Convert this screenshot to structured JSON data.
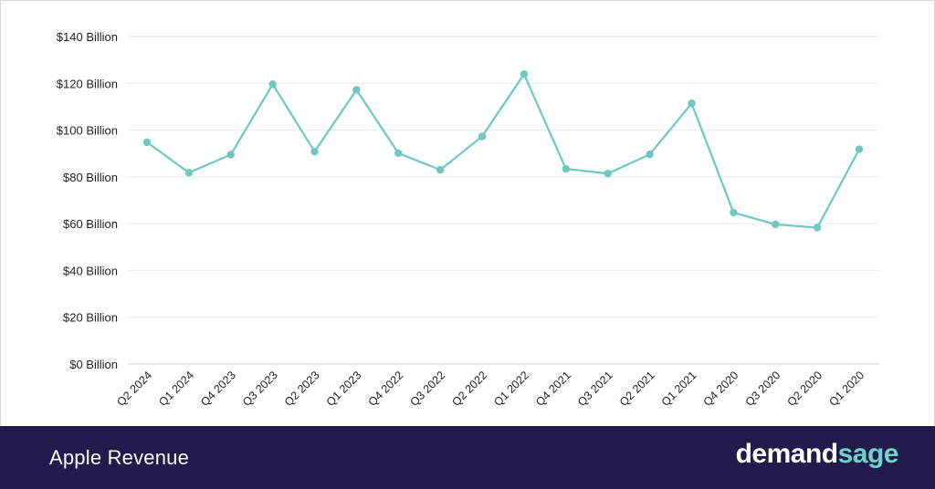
{
  "chart_data": {
    "type": "line",
    "categories": [
      "Q2 2024",
      "Q1 2024",
      "Q4 2023",
      "Q3 2023",
      "Q2 2023",
      "Q1 2023",
      "Q4 2022",
      "Q3 2022",
      "Q2 2022",
      "Q1 2022",
      "Q4 2021",
      "Q3 2021",
      "Q2 2021",
      "Q1 2021",
      "Q4 2020",
      "Q3 2020",
      "Q2 2020",
      "Q1 2020"
    ],
    "series": [
      {
        "values": [
          94.8,
          81.8,
          89.5,
          119.6,
          90.8,
          117.2,
          90.1,
          83.0,
          97.3,
          123.9,
          83.4,
          81.4,
          89.6,
          111.4,
          64.7,
          59.7,
          58.3,
          91.8
        ]
      }
    ],
    "yticks": [
      "$0 Billion",
      "$20 Billion",
      "$40 Billion",
      "$60 Billion",
      "$80 Billion",
      "$100 Billion",
      "$120 Billion",
      "$140 Billion"
    ],
    "ylim": [
      0,
      140
    ],
    "grid": true,
    "line_color": "#6cc8c0",
    "grid_color": "#e9e9e9"
  },
  "footer": {
    "title": "Apple Revenue",
    "brand_part1": "demand",
    "brand_part2": "sage",
    "background": "#201b4a",
    "brand_accent": "#6fd3c9"
  }
}
